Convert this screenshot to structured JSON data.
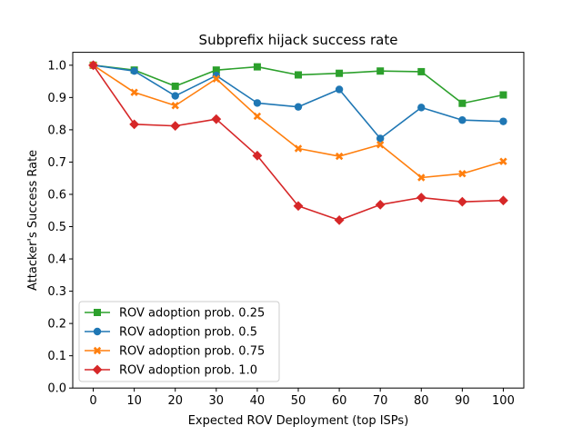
{
  "chart_data": {
    "type": "line",
    "title": "Subprefix hijack success rate",
    "xlabel": "Expected ROV Deployment (top ISPs)",
    "ylabel": "Attacker's Success Rate",
    "x": [
      0,
      10,
      20,
      30,
      40,
      50,
      60,
      70,
      80,
      90,
      100
    ],
    "xlim": [
      -5,
      105
    ],
    "ylim": [
      0,
      1.04
    ],
    "xticks": [
      0,
      10,
      20,
      30,
      40,
      50,
      60,
      70,
      80,
      90,
      100
    ],
    "yticks": [
      0.0,
      0.1,
      0.2,
      0.3,
      0.4,
      0.5,
      0.6,
      0.7,
      0.8,
      0.9,
      1.0
    ],
    "ytick_labels": [
      "0.0",
      "0.1",
      "0.2",
      "0.3",
      "0.4",
      "0.5",
      "0.6",
      "0.7",
      "0.8",
      "0.9",
      "1.0"
    ],
    "grid": false,
    "legend_position": "lower-left",
    "series": [
      {
        "name": "ROV adoption prob. 0.25",
        "color": "#2ca02c",
        "marker": "square",
        "values": [
          1.0,
          0.985,
          0.935,
          0.985,
          0.995,
          0.97,
          0.975,
          0.982,
          0.98,
          0.882,
          0.908
        ]
      },
      {
        "name": "ROV adoption prob. 0.5",
        "color": "#1f77b4",
        "marker": "circle",
        "values": [
          1.0,
          0.982,
          0.905,
          0.968,
          0.883,
          0.871,
          0.925,
          0.773,
          0.869,
          0.83,
          0.826
        ]
      },
      {
        "name": "ROV adoption prob. 0.75",
        "color": "#ff7f0e",
        "marker": "x",
        "values": [
          1.0,
          0.916,
          0.875,
          0.958,
          0.842,
          0.742,
          0.718,
          0.754,
          0.652,
          0.664,
          0.702
        ]
      },
      {
        "name": "ROV adoption prob. 1.0",
        "color": "#d62728",
        "marker": "diamond",
        "values": [
          1.0,
          0.817,
          0.812,
          0.833,
          0.72,
          0.564,
          0.52,
          0.568,
          0.59,
          0.577,
          0.581
        ]
      }
    ]
  }
}
